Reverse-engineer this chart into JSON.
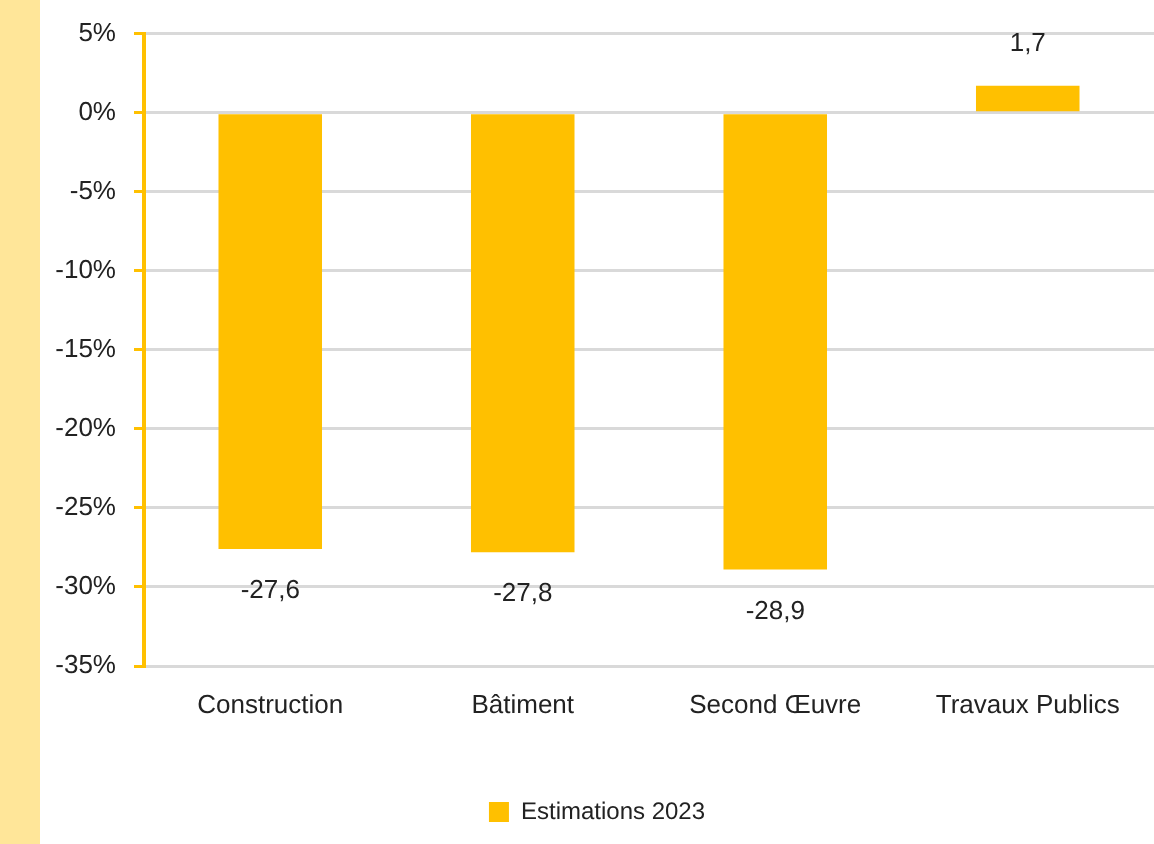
{
  "chart_data": {
    "type": "bar",
    "categories": [
      "Construction",
      "Bâtiment",
      "Second Œuvre",
      "Travaux Publics"
    ],
    "series": [
      {
        "name": "Estimations 2023",
        "color": "#ffc000",
        "values": [
          -27.6,
          -27.8,
          -28.9,
          1.7
        ],
        "value_labels": [
          "-27,6",
          "-27,8",
          "-28,9",
          "1,7"
        ]
      }
    ],
    "ylim": [
      -35,
      5
    ],
    "yticks": [
      {
        "value": 5,
        "label": "5%"
      },
      {
        "value": 0,
        "label": "0%"
      },
      {
        "value": -5,
        "label": "-5%"
      },
      {
        "value": -10,
        "label": "-10%"
      },
      {
        "value": -15,
        "label": "-15%"
      },
      {
        "value": -20,
        "label": "-20%"
      },
      {
        "value": -25,
        "label": "-25%"
      },
      {
        "value": -30,
        "label": "-30%"
      },
      {
        "value": -35,
        "label": "-35%"
      }
    ],
    "grid": "y",
    "legend": "bottom"
  }
}
